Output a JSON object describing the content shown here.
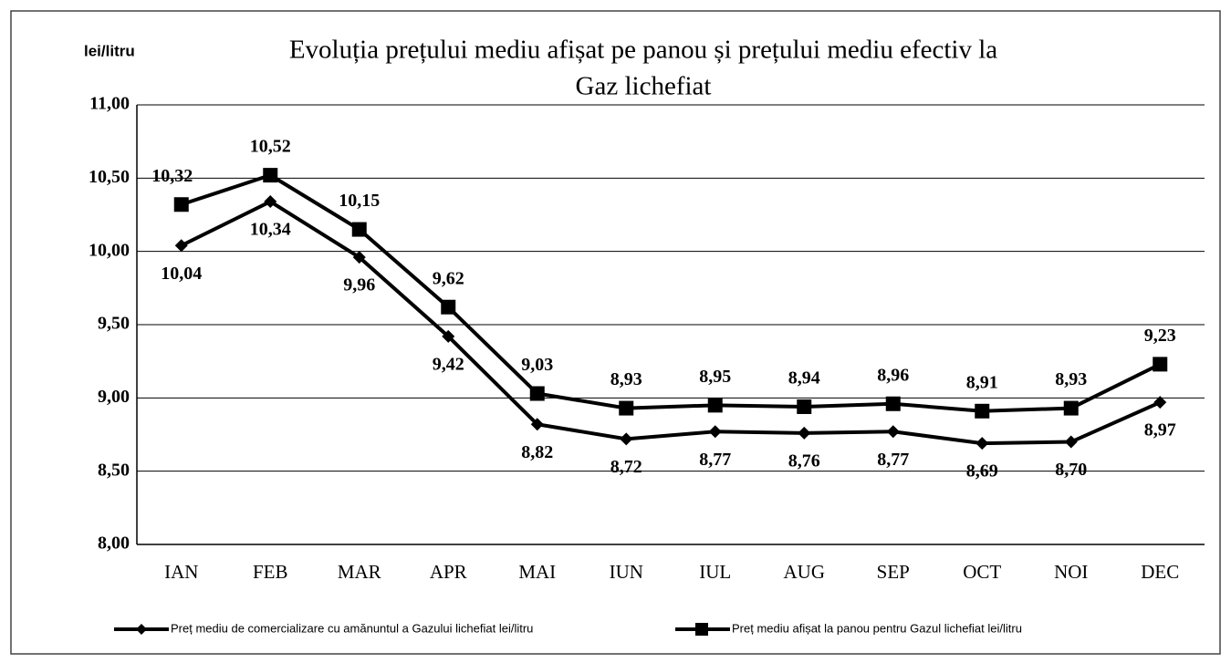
{
  "chart_data": {
    "type": "line",
    "title": [
      "Evoluția prețului mediu afișat pe panou și prețului mediu efectiv la",
      "Gaz lichefiat"
    ],
    "y_label": "lei/litru",
    "categories": [
      "IAN",
      "FEB",
      "MAR",
      "APR",
      "MAI",
      "IUN",
      "IUL",
      "AUG",
      "SEP",
      "OCT",
      "NOI",
      "DEC"
    ],
    "series": [
      {
        "name": "Preț mediu de comercializare cu amănuntul a Gazului lichefiat lei/litru",
        "color": "#000000",
        "marker": "diamond",
        "values": [
          10.04,
          10.34,
          9.96,
          9.42,
          8.82,
          8.72,
          8.77,
          8.76,
          8.77,
          8.69,
          8.7,
          8.97
        ],
        "value_labels": [
          "10,04",
          "10,34",
          "9,96",
          "9,42",
          "8,82",
          "8,72",
          "8,77",
          "8,76",
          "8,77",
          "8,69",
          "8,70",
          "8,97"
        ]
      },
      {
        "name": "Preț  mediu afișat la panou pentru Gazul lichefiat lei/litru",
        "color": "#000000",
        "marker": "square",
        "values": [
          10.32,
          10.52,
          10.15,
          9.62,
          9.03,
          8.93,
          8.95,
          8.94,
          8.96,
          8.91,
          8.93,
          9.23
        ],
        "value_labels": [
          "10,32",
          "10,52",
          "10,15",
          "9,62",
          "9,03",
          "8,93",
          "8,95",
          "8,94",
          "8,96",
          "8,91",
          "8,93",
          "9,23"
        ]
      }
    ],
    "ylim": [
      8,
      11
    ],
    "yticks": [
      {
        "value": 8,
        "label": "8,00"
      },
      {
        "value": 8.5,
        "label": "8,50"
      },
      {
        "value": 9,
        "label": "9,00"
      },
      {
        "value": 9.5,
        "label": "9,50"
      },
      {
        "value": 10,
        "label": "10,00"
      },
      {
        "value": 10.5,
        "label": "10,50"
      },
      {
        "value": 11,
        "label": "11,00"
      }
    ],
    "grid": true,
    "legend": "bottom"
  }
}
